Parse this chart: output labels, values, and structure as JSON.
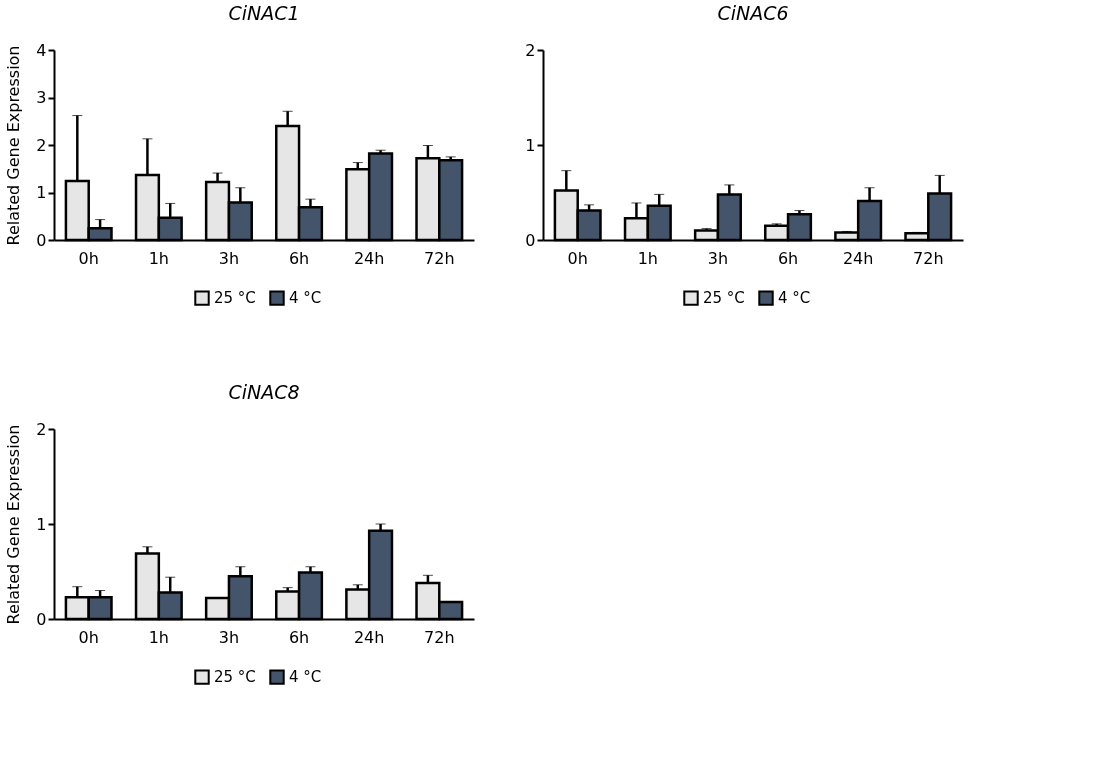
{
  "chart_data": [
    {
      "type": "bar",
      "title": "CiNAC1",
      "ylabel": "Related Gene Expression",
      "categories": [
        "0h",
        "1h",
        "3h",
        "6h",
        "24h",
        "72h"
      ],
      "ylim": [
        0,
        4
      ],
      "yticks": [
        0,
        1,
        2,
        3,
        4
      ],
      "grid": false,
      "legend": "bottom",
      "series": [
        {
          "name": "25 °C",
          "color": "#e6e6e6",
          "values": [
            1.24,
            1.37,
            1.22,
            2.4,
            1.49,
            1.72
          ],
          "errors": [
            [
              1.24,
              2.62
            ],
            [
              1.37,
              2.13
            ],
            [
              1.22,
              1.41
            ],
            [
              2.4,
              2.71
            ],
            [
              1.49,
              1.63
            ],
            [
              1.72,
              1.99
            ]
          ]
        },
        {
          "name": "4 °C",
          "color": "#44546a",
          "values": [
            0.25,
            0.47,
            0.79,
            0.69,
            1.82,
            1.68
          ],
          "errors": [
            [
              0.25,
              0.43
            ],
            [
              0.47,
              0.77
            ],
            [
              0.79,
              1.1
            ],
            [
              0.69,
              0.86
            ],
            [
              1.82,
              1.89
            ],
            [
              1.68,
              1.75
            ]
          ]
        }
      ]
    },
    {
      "type": "bar",
      "title": "CiNAC6",
      "categories": [
        "0h",
        "1h",
        "3h",
        "6h",
        "24h",
        "72h"
      ],
      "ylim": [
        0,
        2
      ],
      "yticks": [
        0,
        1,
        2
      ],
      "grid": false,
      "legend": "bottom",
      "series": [
        {
          "name": "25 °C",
          "color": "#e6e6e6",
          "values": [
            0.52,
            0.23,
            0.1,
            0.15,
            0.08,
            0.07
          ],
          "errors": [
            [
              0.52,
              0.73
            ],
            [
              0.23,
              0.39
            ],
            [
              0.1,
              0.12
            ],
            [
              0.15,
              0.17
            ],
            [
              0.08,
              0.09
            ],
            [
              0.07,
              0.08
            ]
          ]
        },
        {
          "name": "4 °C",
          "color": "#44546a",
          "values": [
            0.31,
            0.36,
            0.48,
            0.27,
            0.41,
            0.49
          ],
          "errors": [
            [
              0.31,
              0.37
            ],
            [
              0.36,
              0.48
            ],
            [
              0.48,
              0.58
            ],
            [
              0.27,
              0.31
            ],
            [
              0.41,
              0.55
            ],
            [
              0.49,
              0.68
            ]
          ]
        }
      ]
    },
    {
      "type": "bar",
      "title": "CiNAC8",
      "ylabel": "Related Gene Expression",
      "categories": [
        "0h",
        "1h",
        "3h",
        "6h",
        "24h",
        "72h"
      ],
      "ylim": [
        0,
        2
      ],
      "yticks": [
        0,
        1,
        2
      ],
      "grid": false,
      "legend": "bottom",
      "series": [
        {
          "name": "25 °C",
          "color": "#e6e6e6",
          "values": [
            0.23,
            0.69,
            0.22,
            0.29,
            0.31,
            0.38
          ],
          "errors": [
            [
              0.23,
              0.34
            ],
            [
              0.69,
              0.76
            ],
            null,
            [
              0.29,
              0.33
            ],
            [
              0.31,
              0.36
            ],
            [
              0.38,
              0.46
            ]
          ]
        },
        {
          "name": "4 °C",
          "color": "#44546a",
          "values": [
            0.23,
            0.28,
            0.45,
            0.49,
            0.93,
            0.18
          ],
          "errors": [
            [
              0.23,
              0.3
            ],
            [
              0.28,
              0.44
            ],
            [
              0.45,
              0.55
            ],
            [
              0.49,
              0.55
            ],
            [
              0.93,
              1.0
            ],
            null
          ]
        }
      ]
    }
  ]
}
